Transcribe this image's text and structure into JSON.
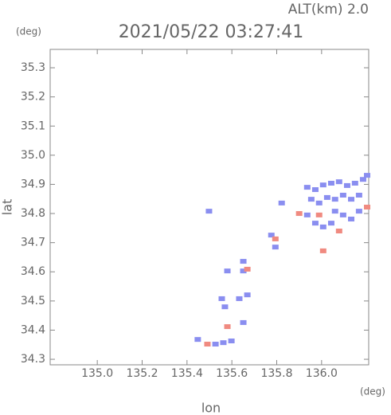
{
  "chart_data": {
    "type": "scatter",
    "title": "2021/05/22 03:27:41",
    "annotation": "ALT(km) 2.0",
    "x_label": "lon",
    "y_label": "lat",
    "x_unit": "(deg)",
    "y_unit": "(deg)",
    "xlim": [
      134.79,
      136.21
    ],
    "ylim": [
      34.281,
      35.363
    ],
    "xticks": [
      {
        "value": 135.0,
        "label": "135.0"
      },
      135.2,
      135.4,
      135.6,
      135.8,
      {
        "value": 136.0,
        "label": "136.0"
      }
    ],
    "yticks": [
      34.3,
      34.4,
      34.5,
      34.6,
      34.7,
      34.8,
      34.9,
      {
        "value": 35.0,
        "label": "35.0"
      },
      35.1,
      35.2,
      35.3
    ],
    "series": [
      {
        "color": "#8a8ef0",
        "x": [
          135.936,
          135.972,
          136.007,
          136.043,
          136.078,
          136.114,
          136.149,
          136.185,
          136.203,
          135.954,
          135.989,
          136.025,
          136.06,
          136.096,
          136.132,
          136.167,
          136.06,
          136.096,
          136.132,
          136.167,
          136.043,
          135.936,
          135.972,
          136.007,
          135.498,
          135.822,
          135.776,
          135.794,
          135.58,
          135.651,
          135.651,
          135.555,
          135.569,
          135.633,
          135.669,
          135.651,
          135.562,
          135.598,
          135.527,
          135.448
        ],
        "y": [
          34.89,
          34.882,
          34.898,
          34.904,
          34.909,
          34.896,
          34.904,
          34.917,
          34.931,
          34.849,
          34.836,
          34.855,
          34.849,
          34.863,
          34.849,
          34.863,
          34.808,
          34.795,
          34.781,
          34.808,
          34.767,
          34.795,
          34.767,
          34.754,
          34.808,
          34.836,
          34.726,
          34.685,
          34.603,
          34.636,
          34.603,
          34.508,
          34.48,
          34.508,
          34.521,
          34.426,
          34.357,
          34.363,
          34.352,
          34.368
        ]
      },
      {
        "color": "#f08a80",
        "x": [
          136.203,
          135.989,
          136.078,
          135.794,
          135.669,
          136.007,
          135.58,
          135.491,
          135.9
        ],
        "y": [
          34.822,
          34.795,
          34.74,
          34.713,
          34.609,
          34.672,
          34.412,
          34.352,
          34.8
        ]
      }
    ]
  }
}
